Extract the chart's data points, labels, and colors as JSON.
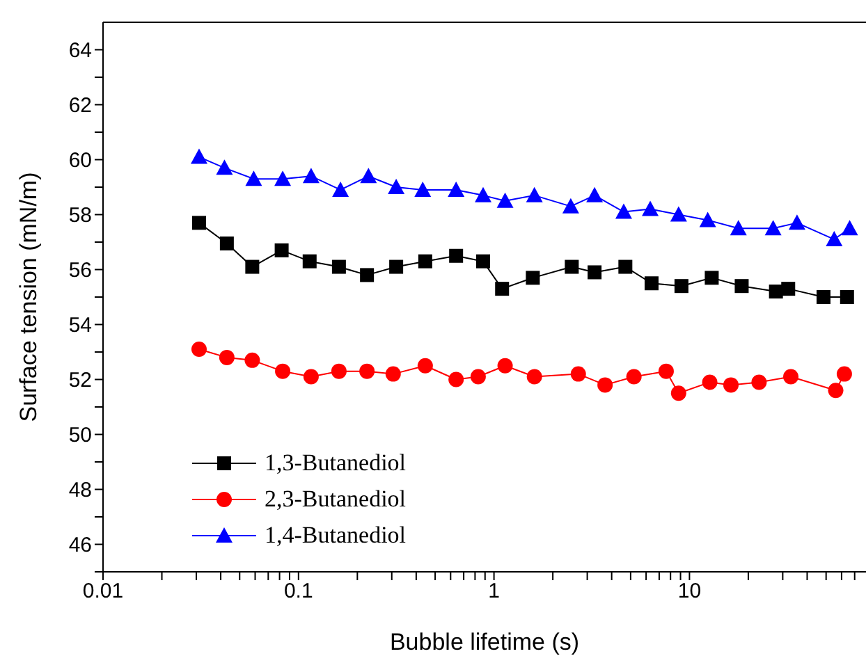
{
  "chart_data": {
    "type": "line",
    "xlabel": "Bubble lifetime (s)",
    "ylabel": "Surface tension (mN/m)",
    "log": "x",
    "xlim": [
      0.01,
      80
    ],
    "ylim": [
      45,
      65
    ],
    "xticks": [
      0.01,
      {
        "value": 0.02,
        "label": null
      },
      {
        "value": 0.03,
        "label": null
      },
      {
        "value": 0.04,
        "label": null
      },
      {
        "value": 0.05,
        "label": null
      },
      {
        "value": 0.06,
        "label": null
      },
      {
        "value": 0.07,
        "label": null
      },
      {
        "value": 0.08,
        "label": null
      },
      {
        "value": 0.09,
        "label": null
      },
      0.1,
      {
        "value": 0.2,
        "label": null
      },
      {
        "value": 0.3,
        "label": null
      },
      {
        "value": 0.4,
        "label": null
      },
      {
        "value": 0.5,
        "label": null
      },
      {
        "value": 0.6,
        "label": null
      },
      {
        "value": 0.7,
        "label": null
      },
      {
        "value": 0.8,
        "label": null
      },
      {
        "value": 0.9,
        "label": null
      },
      1,
      {
        "value": 2,
        "label": null
      },
      {
        "value": 3,
        "label": null
      },
      {
        "value": 4,
        "label": null
      },
      {
        "value": 5,
        "label": null
      },
      {
        "value": 6,
        "label": null
      },
      {
        "value": 7,
        "label": null
      },
      {
        "value": 8,
        "label": null
      },
      {
        "value": 9,
        "label": null
      },
      10,
      {
        "value": 20,
        "label": null
      },
      {
        "value": 30,
        "label": null
      },
      {
        "value": 40,
        "label": null
      },
      {
        "value": 50,
        "label": null
      },
      {
        "value": 60,
        "label": null
      },
      {
        "value": 70,
        "label": null
      }
    ],
    "yticks": [
      {
        "value": 45,
        "label": null
      },
      46,
      {
        "value": 47,
        "label": null
      },
      48,
      {
        "value": 49,
        "label": null
      },
      50,
      {
        "value": 51,
        "label": null
      },
      52,
      {
        "value": 53,
        "label": null
      },
      54,
      {
        "value": 55,
        "label": null
      },
      56,
      {
        "value": 57,
        "label": null
      },
      58,
      {
        "value": 59,
        "label": null
      },
      60,
      {
        "value": 61,
        "label": null
      },
      62,
      {
        "value": 63,
        "label": null
      },
      64
    ],
    "grid": false,
    "legend": "bottom left",
    "line_style": "solid",
    "series": [
      {
        "name": "1,3-Butanediol",
        "color": "#000000",
        "marker": "square",
        "x": [
          0.031,
          0.043,
          0.058,
          0.082,
          0.114,
          0.161,
          0.224,
          0.316,
          0.445,
          0.64,
          0.88,
          1.1,
          1.58,
          2.5,
          3.27,
          4.7,
          6.4,
          9.1,
          13,
          18.5,
          27.7,
          32,
          48.5,
          64
        ],
        "values": [
          57.7,
          56.95,
          56.1,
          56.7,
          56.3,
          56.1,
          55.8,
          56.1,
          56.3,
          56.5,
          56.3,
          55.3,
          55.7,
          56.1,
          55.9,
          56.1,
          55.5,
          55.4,
          55.7,
          55.4,
          55.2,
          55.3,
          55.0,
          55.0
        ]
      },
      {
        "name": "2,3-Butanediol",
        "color": "#ff0000",
        "marker": "circle",
        "x": [
          0.031,
          0.043,
          0.058,
          0.083,
          0.116,
          0.161,
          0.224,
          0.305,
          0.445,
          0.64,
          0.83,
          1.14,
          1.61,
          2.7,
          3.7,
          5.2,
          7.6,
          8.8,
          12.7,
          16.3,
          22.7,
          33,
          56,
          62
        ],
        "values": [
          53.1,
          52.8,
          52.7,
          52.3,
          52.1,
          52.3,
          52.3,
          52.2,
          52.5,
          52.0,
          52.1,
          52.5,
          52.1,
          52.2,
          51.8,
          52.1,
          52.3,
          51.5,
          51.9,
          51.8,
          51.9,
          52.1,
          51.6,
          52.2
        ]
      },
      {
        "name": "1,4-Butanediol",
        "color": "#0000ff",
        "marker": "triangle",
        "x": [
          0.031,
          0.0418,
          0.059,
          0.083,
          0.116,
          0.164,
          0.228,
          0.316,
          0.432,
          0.64,
          0.88,
          1.14,
          1.61,
          2.47,
          3.27,
          4.61,
          6.3,
          8.8,
          12.4,
          17.8,
          26.8,
          35.5,
          55,
          66
        ],
        "values": [
          60.1,
          59.7,
          59.3,
          59.3,
          59.4,
          58.9,
          59.4,
          59.0,
          58.9,
          58.9,
          58.7,
          58.5,
          58.7,
          58.3,
          58.7,
          58.1,
          58.2,
          58.0,
          57.8,
          57.5,
          57.5,
          57.7,
          57.1,
          57.5
        ]
      }
    ]
  }
}
